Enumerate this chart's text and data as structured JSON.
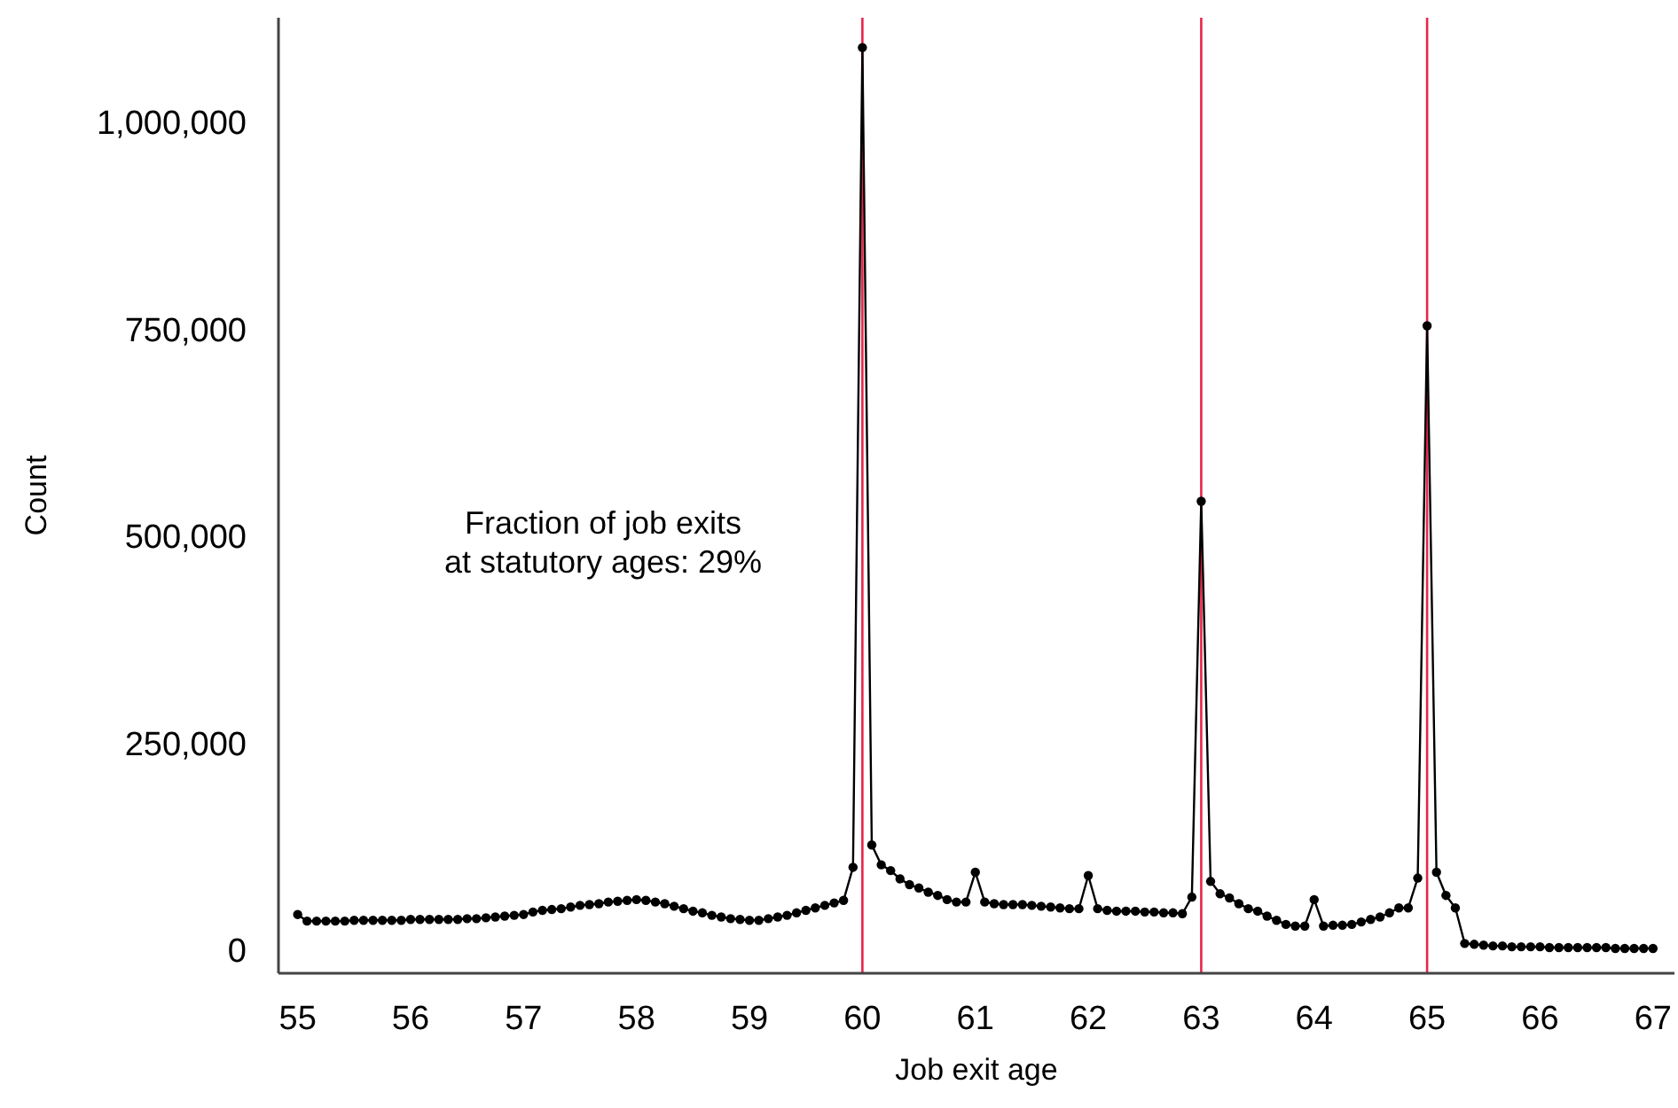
{
  "chart_data": {
    "type": "line",
    "xlabel": "Job exit age",
    "ylabel": "Count",
    "annotations": [
      "Fraction of job exits\nat statutory ages: 29%"
    ],
    "x": [
      55,
      55.083,
      55.167,
      55.25,
      55.333,
      55.417,
      55.5,
      55.583,
      55.667,
      55.75,
      55.833,
      55.917,
      56,
      56.083,
      56.167,
      56.25,
      56.333,
      56.417,
      56.5,
      56.583,
      56.667,
      56.75,
      56.833,
      56.917,
      57,
      57.083,
      57.167,
      57.25,
      57.333,
      57.417,
      57.5,
      57.583,
      57.667,
      57.75,
      57.833,
      57.917,
      58,
      58.083,
      58.167,
      58.25,
      58.333,
      58.417,
      58.5,
      58.583,
      58.667,
      58.75,
      58.833,
      58.917,
      59,
      59.083,
      59.167,
      59.25,
      59.333,
      59.417,
      59.5,
      59.583,
      59.667,
      59.75,
      59.833,
      59.917,
      60,
      60.083,
      60.167,
      60.25,
      60.333,
      60.417,
      60.5,
      60.583,
      60.667,
      60.75,
      60.833,
      60.917,
      61,
      61.083,
      61.167,
      61.25,
      61.333,
      61.417,
      61.5,
      61.583,
      61.667,
      61.75,
      61.833,
      61.917,
      62,
      62.083,
      62.167,
      62.25,
      62.333,
      62.417,
      62.5,
      62.583,
      62.667,
      62.75,
      62.833,
      62.917,
      63,
      63.083,
      63.167,
      63.25,
      63.333,
      63.417,
      63.5,
      63.583,
      63.667,
      63.75,
      63.833,
      63.917,
      64,
      64.083,
      64.167,
      64.25,
      64.333,
      64.417,
      64.5,
      64.583,
      64.667,
      64.75,
      64.833,
      64.917,
      65,
      65.083,
      65.167,
      65.25,
      65.333,
      65.417,
      65.5,
      65.583,
      65.667,
      65.75,
      65.833,
      65.917,
      66,
      66.083,
      66.167,
      66.25,
      66.333,
      66.417,
      66.5,
      66.583,
      66.667,
      66.75,
      66.833,
      66.917,
      67
    ],
    "series": [
      {
        "color": "#000000",
        "values": [
          43000,
          35000,
          35000,
          35000,
          35000,
          35000,
          36000,
          36000,
          36000,
          36000,
          36000,
          36000,
          37000,
          37000,
          37000,
          37000,
          37000,
          37000,
          38000,
          38000,
          39000,
          40000,
          41000,
          42000,
          43000,
          46000,
          48000,
          49000,
          50000,
          52000,
          54000,
          55000,
          56000,
          58000,
          59000,
          60000,
          61000,
          60000,
          58000,
          56000,
          53000,
          50000,
          47000,
          45000,
          42000,
          40000,
          38000,
          37000,
          36000,
          36000,
          38000,
          40000,
          42000,
          45000,
          48000,
          51000,
          54000,
          57000,
          60000,
          100000,
          1090000,
          127000,
          103000,
          96000,
          86000,
          79000,
          75000,
          70000,
          66000,
          61000,
          58000,
          58000,
          94000,
          58000,
          56000,
          55000,
          55000,
          55000,
          54000,
          53000,
          52000,
          51000,
          50000,
          50000,
          90000,
          50000,
          48000,
          47000,
          47000,
          47000,
          46000,
          46000,
          45000,
          45000,
          44000,
          64000,
          542000,
          83000,
          68000,
          63000,
          56000,
          50000,
          47000,
          41000,
          36000,
          31000,
          29000,
          29000,
          61000,
          29000,
          30000,
          30000,
          31000,
          34000,
          37000,
          40000,
          45000,
          51000,
          51000,
          87000,
          754000,
          94000,
          66000,
          51000,
          8000,
          7000,
          6000,
          5000,
          5000,
          4000,
          4000,
          4000,
          4000,
          3000,
          3000,
          3000,
          3000,
          3000,
          3000,
          3000,
          2000,
          2000,
          2000,
          2000,
          2000
        ]
      }
    ],
    "xlim": [
      54.83,
      67.19
    ],
    "xticks": [
      55,
      56,
      57,
      58,
      59,
      60,
      61,
      62,
      63,
      64,
      65,
      66,
      67
    ],
    "ylim": [
      -28000,
      1126000
    ],
    "yticks": [
      0,
      {
        "value": 250000,
        "label": "250,000"
      },
      {
        "value": 500000,
        "label": "500,000"
      },
      {
        "value": 750000,
        "label": "750,000"
      },
      {
        "value": 1000000,
        "label": "1,000,000"
      }
    ],
    "ref_lines": [
      {
        "axis": "x",
        "value": 60,
        "color": "#e8254a"
      },
      {
        "axis": "x",
        "value": 63,
        "color": "#e8254a"
      },
      {
        "axis": "x",
        "value": 65,
        "color": "#e8254a"
      }
    ],
    "marker": "circle",
    "line_style": "solid",
    "grid": false,
    "legend": false
  }
}
